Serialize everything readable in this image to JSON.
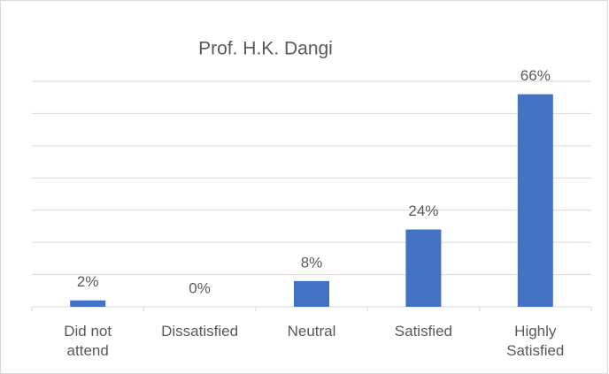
{
  "chart_data": {
    "type": "bar",
    "title": "Prof. H.K. Dangi",
    "categories": [
      "Did not attend",
      "Dissatisfied",
      "Neutral",
      "Satisfied",
      "Highly Satisfied"
    ],
    "values": [
      2,
      0,
      8,
      24,
      66
    ],
    "value_labels": [
      "2%",
      "0%",
      "8%",
      "24%",
      "66%"
    ],
    "color": "#4472c4",
    "ylim": [
      0,
      70
    ],
    "yticks": [
      0,
      10,
      20,
      30,
      40,
      50,
      60,
      70
    ],
    "grid": true
  }
}
